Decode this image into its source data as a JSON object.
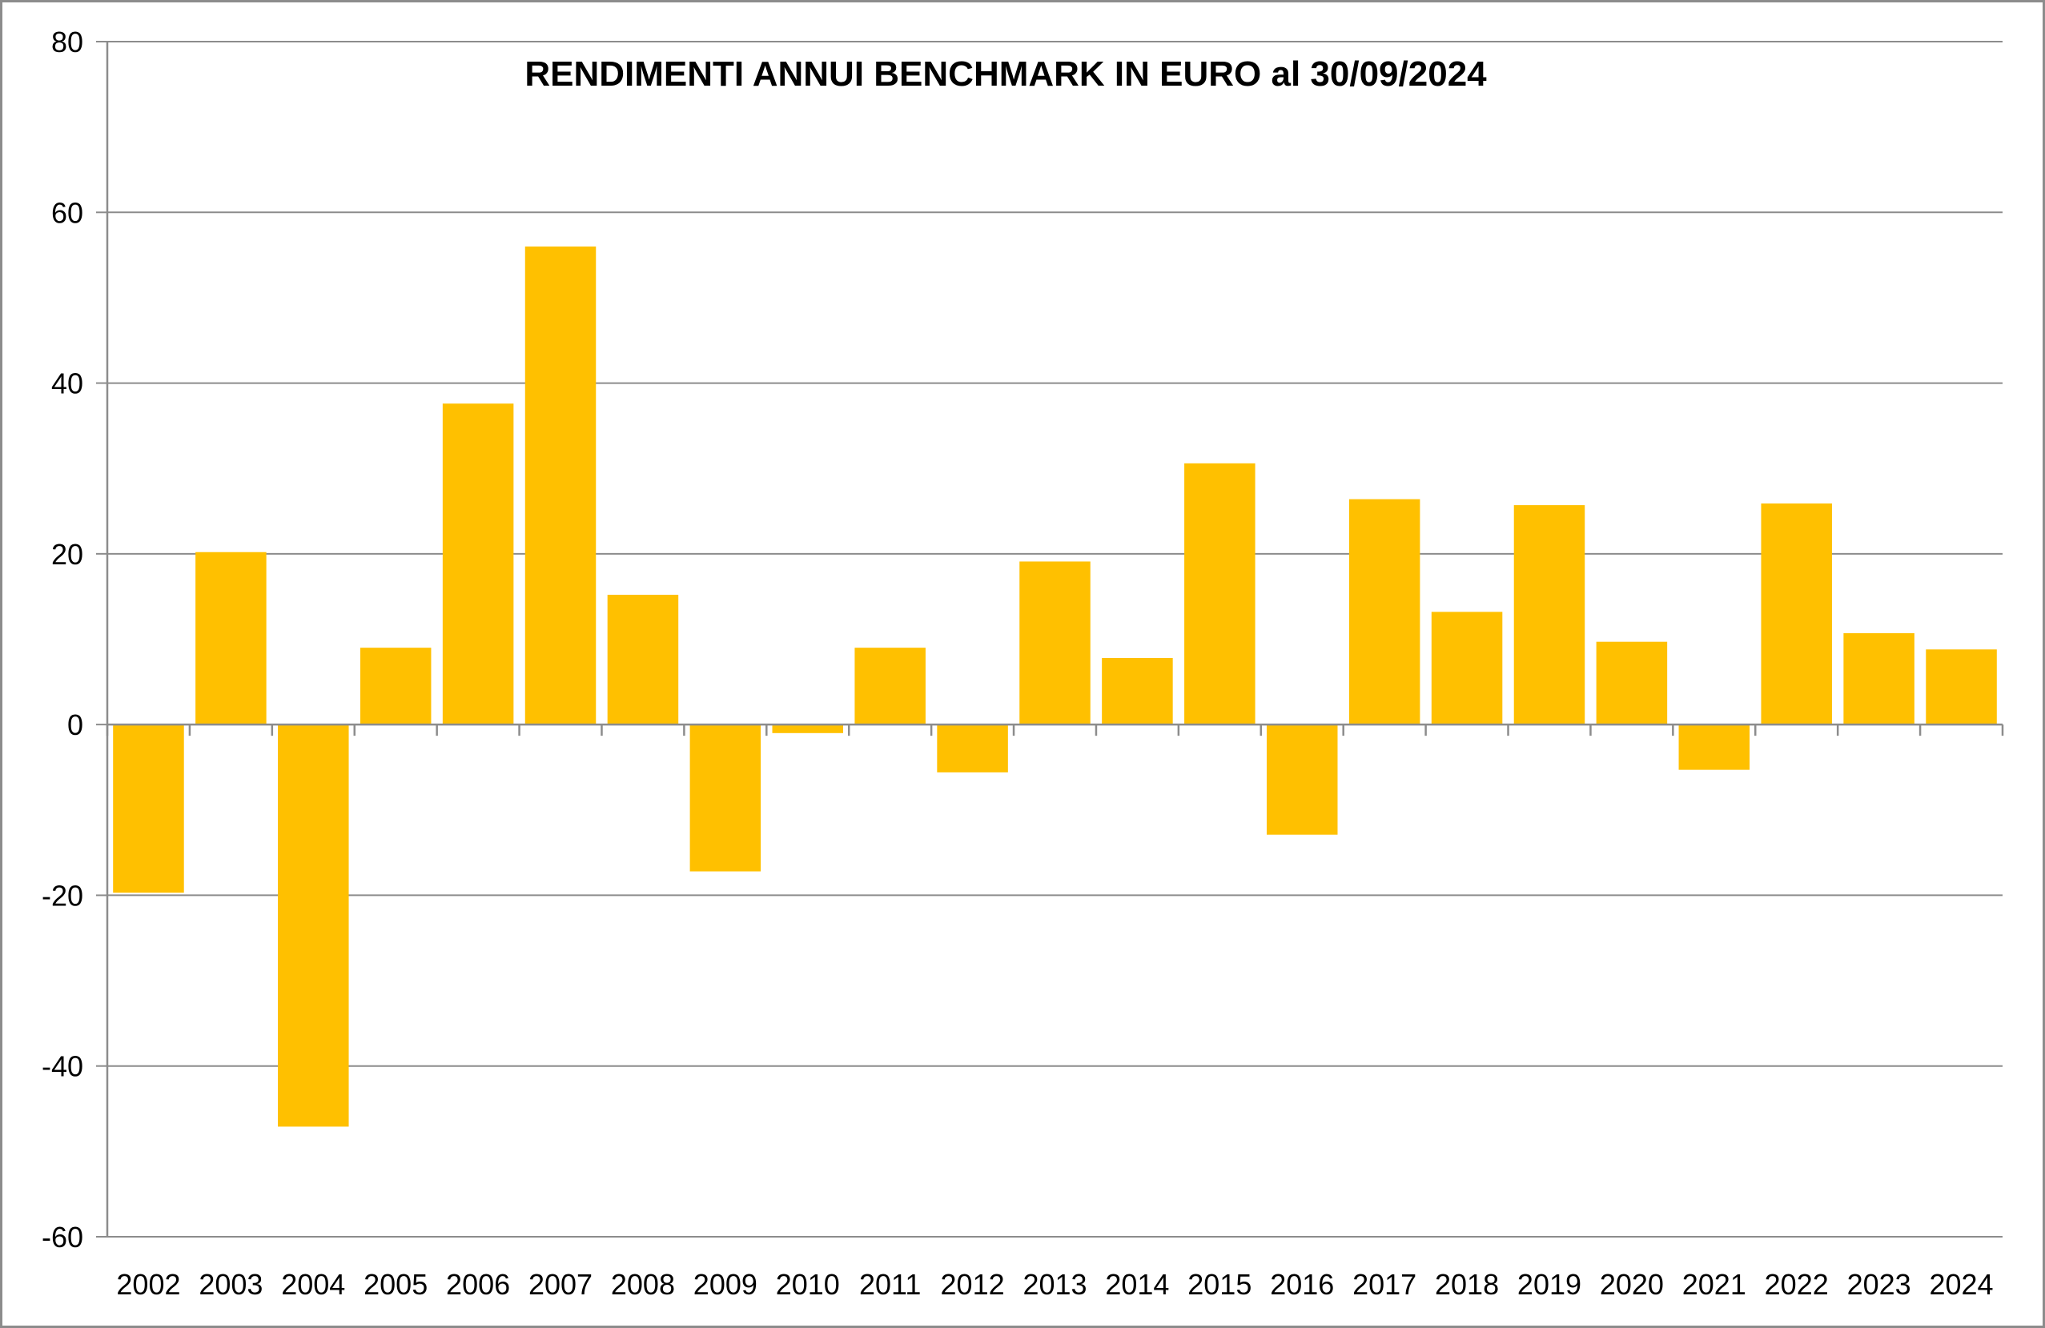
{
  "chart_data": {
    "type": "bar",
    "title": "RENDIMENTI ANNUI BENCHMARK IN EURO al 30/09/2024",
    "xlabel": "",
    "ylabel": "",
    "categories": [
      "2002",
      "2003",
      "2004",
      "2005",
      "2006",
      "2007",
      "2008",
      "2009",
      "2010",
      "2011",
      "2012",
      "2013",
      "2014",
      "2015",
      "2016",
      "2017",
      "2018",
      "2019",
      "2020",
      "2021",
      "2022",
      "2023",
      "2024"
    ],
    "values": [
      -19.7,
      20.2,
      -47.1,
      9.0,
      37.6,
      56.0,
      15.2,
      -17.2,
      -1.0,
      9.0,
      -5.6,
      19.1,
      7.8,
      30.6,
      -12.9,
      26.4,
      13.2,
      25.7,
      9.7,
      -5.3,
      25.9,
      10.7,
      8.8
    ],
    "ylim": [
      -60,
      80
    ],
    "yticks": [
      80,
      60,
      40,
      20,
      0,
      -20,
      -40,
      -60
    ],
    "grid": true,
    "legend": "none",
    "bar_color": "#FFC000",
    "grid_color": "#8C8C8C"
  }
}
